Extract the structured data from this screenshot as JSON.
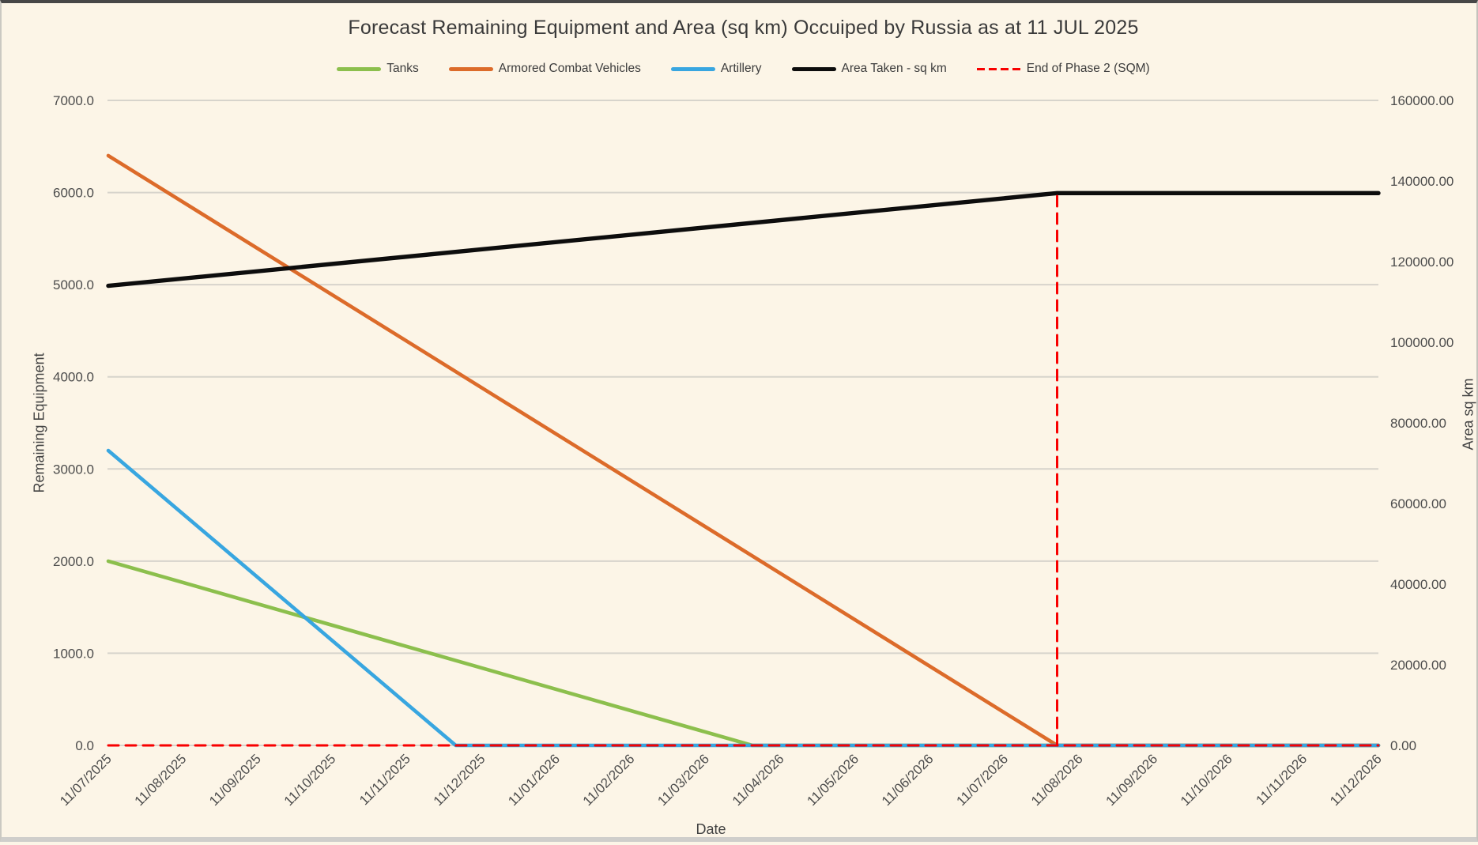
{
  "window": {
    "background": "#FCF5E7",
    "top_border_color": "#474747",
    "frame_border_color": "#cbc9c2"
  },
  "chart_data": {
    "type": "line",
    "title": "Forecast Remaining Equipment and Area (sq km) Occuiped by Russia as at 11 JUL 2025",
    "title_color": "#3A3A3A",
    "background": "#FCF5E7",
    "gridline_color": "#D7D4CC",
    "tick_label_color": "#4C4C4C",
    "legend_position": "top",
    "grid": "horizontal-only",
    "x_axis": {
      "title": "Date",
      "label_rotation_deg": -45,
      "categories": [
        "11/07/2025",
        "11/08/2025",
        "11/09/2025",
        "11/10/2025",
        "11/11/2025",
        "11/12/2025",
        "11/01/2026",
        "11/02/2026",
        "11/03/2026",
        "11/04/2026",
        "11/05/2026",
        "11/06/2026",
        "11/07/2026",
        "11/08/2026",
        "11/09/2026",
        "11/10/2026",
        "11/11/2026",
        "11/12/2026"
      ]
    },
    "y_left": {
      "title": "Remaining Equipment",
      "min": 0,
      "max": 7000,
      "step": 1000,
      "tick_decimals": 1
    },
    "y_right": {
      "title": "Area sq km",
      "min": 0,
      "max": 160000,
      "step": 20000,
      "tick_decimals": 2
    },
    "points_units_note": "segment point x = category index (fractional x = date between monthly ticks); y = axis value",
    "series": [
      {
        "name": "Tanks",
        "color": "#8CBF4D",
        "axis": "left",
        "stroke_width": 4.6,
        "dash": null,
        "segments": [
          [
            [
              0,
              2000
            ],
            [
              8.62,
              0
            ],
            [
              17,
              0
            ]
          ]
        ],
        "summary": "Starts ~2000 on 11/07/2025, declines linearly, reaches 0 just before 11/04/2026, stays 0"
      },
      {
        "name": "Armored Combat Vehicles",
        "color": "#DC6B2A",
        "axis": "left",
        "stroke_width": 4.6,
        "dash": null,
        "segments": [
          [
            [
              0,
              6400
            ],
            [
              12.7,
              0
            ],
            [
              17,
              0
            ]
          ]
        ],
        "summary": "Starts ~6400 on 11/07/2025, declines linearly, reaches 0 just before 11/08/2026, stays 0"
      },
      {
        "name": "Artillery",
        "color": "#38A6E0",
        "axis": "left",
        "stroke_width": 4.6,
        "dash": null,
        "segments": [
          [
            [
              0,
              3200
            ],
            [
              4.65,
              0
            ],
            [
              17,
              0
            ]
          ]
        ],
        "summary": "Starts ~3200 on 11/07/2025, declines linearly, reaches 0 just before 11/12/2025, stays 0"
      },
      {
        "name": "Area Taken - sq km",
        "color": "#0D0D0D",
        "axis": "right",
        "stroke_width": 5.4,
        "dash": null,
        "segments": [
          [
            [
              0,
              114000
            ],
            [
              12.7,
              137000
            ],
            [
              17,
              137000
            ]
          ]
        ],
        "summary": "Rises from ~114000 sq km to ~137000 sq km at end of Phase 2, then flat"
      },
      {
        "name": "End of Phase 2 (SQM)",
        "color": "#F80000",
        "axis": "right",
        "stroke_width": 3,
        "dash": "13 9",
        "segments": [
          [
            [
              0,
              0
            ],
            [
              17,
              0
            ]
          ],
          [
            [
              12.7,
              0
            ],
            [
              12.7,
              137000
            ]
          ]
        ],
        "summary": "Red dashed baseline at 0 across full range plus vertical marker between 11/07/2026 and 11/08/2026 up to area line"
      }
    ]
  }
}
